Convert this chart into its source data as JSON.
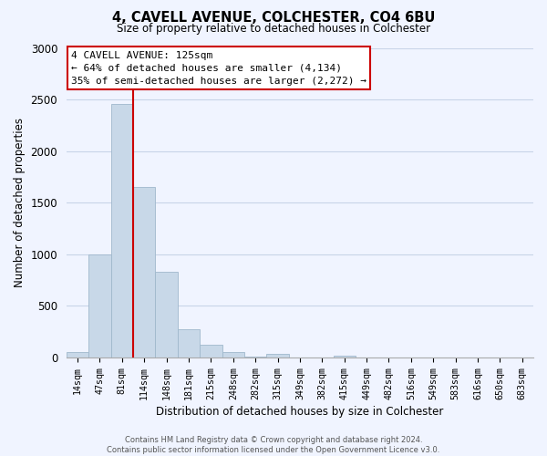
{
  "title": "4, CAVELL AVENUE, COLCHESTER, CO4 6BU",
  "subtitle": "Size of property relative to detached houses in Colchester",
  "xlabel": "Distribution of detached houses by size in Colchester",
  "ylabel": "Number of detached properties",
  "bar_labels": [
    "14sqm",
    "47sqm",
    "81sqm",
    "114sqm",
    "148sqm",
    "181sqm",
    "215sqm",
    "248sqm",
    "282sqm",
    "315sqm",
    "349sqm",
    "382sqm",
    "415sqm",
    "449sqm",
    "482sqm",
    "516sqm",
    "549sqm",
    "583sqm",
    "616sqm",
    "650sqm",
    "683sqm"
  ],
  "bar_values": [
    55,
    1000,
    2460,
    1650,
    830,
    270,
    120,
    50,
    5,
    35,
    0,
    0,
    20,
    0,
    0,
    0,
    0,
    0,
    0,
    0,
    0
  ],
  "bar_color": "#c8d8e8",
  "bar_edge_color": "#a0b8cc",
  "vline_x": 3.0,
  "vline_color": "#cc0000",
  "annotation_line1": "4 CAVELL AVENUE: 125sqm",
  "annotation_line2": "← 64% of detached houses are smaller (4,134)",
  "annotation_line3": "35% of semi-detached houses are larger (2,272) →",
  "annotation_box_color": "#ffffff",
  "annotation_box_edge": "#cc0000",
  "ylim": [
    0,
    3000
  ],
  "yticks": [
    0,
    500,
    1000,
    1500,
    2000,
    2500,
    3000
  ],
  "footer1": "Contains HM Land Registry data © Crown copyright and database right 2024.",
  "footer2": "Contains public sector information licensed under the Open Government Licence v3.0.",
  "bg_color": "#f0f4ff",
  "grid_color": "#c8d4e8"
}
